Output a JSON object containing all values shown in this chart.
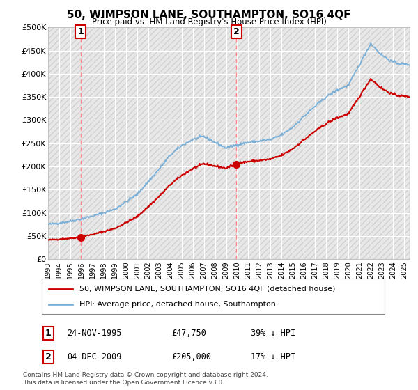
{
  "title": "50, WIMPSON LANE, SOUTHAMPTON, SO16 4QF",
  "subtitle": "Price paid vs. HM Land Registry's House Price Index (HPI)",
  "legend_line1": "50, WIMPSON LANE, SOUTHAMPTON, SO16 4QF (detached house)",
  "legend_line2": "HPI: Average price, detached house, Southampton",
  "sale1_label": "1",
  "sale1_date": "24-NOV-1995",
  "sale1_price": 47750,
  "sale1_note": "39% ↓ HPI",
  "sale2_label": "2",
  "sale2_date": "04-DEC-2009",
  "sale2_price": 205000,
  "sale2_note": "17% ↓ HPI",
  "footnote1": "Contains HM Land Registry data © Crown copyright and database right 2024.",
  "footnote2": "This data is licensed under the Open Government Licence v3.0.",
  "hpi_color": "#7ab0d8",
  "price_color": "#cc0000",
  "marker_color": "#cc0000",
  "sale1_year": 1995.92,
  "sale2_year": 2009.92,
  "ylim": [
    0,
    500000
  ],
  "xlim_start": 1993,
  "xlim_end": 2025.5,
  "bg_color": "#e8e8e8",
  "hatch_color": "#d0d0d0"
}
